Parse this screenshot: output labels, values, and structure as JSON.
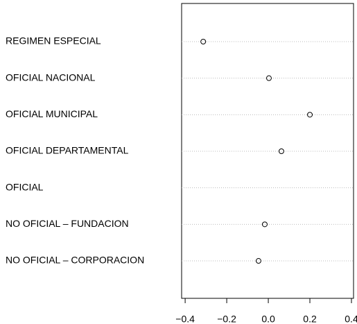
{
  "chart_data": {
    "type": "dot",
    "categories": [
      "REGIMEN ESPECIAL",
      "OFICIAL NACIONAL",
      "OFICIAL MUNICIPAL",
      "OFICIAL DEPARTAMENTAL",
      "OFICIAL",
      "NO OFICIAL – FUNDACION",
      "NO OFICIAL – CORPORACION"
    ],
    "values": [
      -0.313,
      0.003,
      0.2,
      0.063,
      null,
      -0.017,
      -0.047
    ],
    "color": "#000000",
    "xlim": [
      -0.417,
      0.41
    ],
    "xticks": [
      {
        "value": -0.4,
        "label": "−0.4"
      },
      {
        "value": -0.2,
        "label": "−0.2"
      },
      {
        "value": 0,
        "label": "0.0"
      },
      0.2,
      0.4
    ],
    "grid": true
  }
}
